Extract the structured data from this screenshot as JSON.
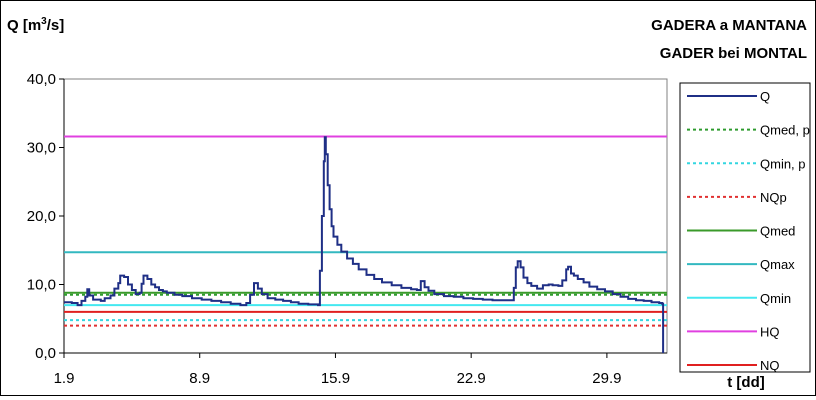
{
  "chart_data": {
    "type": "line",
    "title": "GADERA a MANTANA",
    "subtitle": "GADER bei MONTAL",
    "ylabel": "Q [m³/s]",
    "ylabel_main": "Q [m",
    "ylabel_sup": "3",
    "ylabel_tail": "/s]",
    "xlabel": "t [dd]",
    "ylim": [
      0,
      40
    ],
    "xlim": [
      1.9,
      33.0
    ],
    "grid": "none",
    "legend_position": "right",
    "y_ticks": [
      {
        "value": 0,
        "label": "0,0"
      },
      {
        "value": 10,
        "label": "10,0"
      },
      {
        "value": 20,
        "label": "20,0"
      },
      {
        "value": 30,
        "label": "30,0"
      },
      {
        "value": 40,
        "label": "40,0"
      }
    ],
    "x_ticks": [
      {
        "value": 1.9,
        "label": "1.9"
      },
      {
        "value": 8.9,
        "label": "8.9"
      },
      {
        "value": 15.9,
        "label": "15.9"
      },
      {
        "value": 22.9,
        "label": "22.9"
      },
      {
        "value": 29.9,
        "label": "29.9"
      }
    ],
    "series": [
      {
        "name": "Q",
        "color": "#1f2f86",
        "style": "solid",
        "width": 2,
        "points": [
          [
            1.9,
            7.4
          ],
          [
            2.3,
            7.3
          ],
          [
            2.6,
            7.0
          ],
          [
            2.8,
            7.6
          ],
          [
            3.0,
            8.2
          ],
          [
            3.1,
            9.3
          ],
          [
            3.2,
            8.4
          ],
          [
            3.4,
            7.8
          ],
          [
            3.8,
            7.6
          ],
          [
            4.0,
            8.0
          ],
          [
            4.3,
            8.4
          ],
          [
            4.5,
            9.4
          ],
          [
            4.7,
            10.2
          ],
          [
            4.8,
            11.3
          ],
          [
            5.0,
            11.1
          ],
          [
            5.2,
            10.0
          ],
          [
            5.4,
            9.2
          ],
          [
            5.6,
            8.6
          ],
          [
            5.8,
            8.8
          ],
          [
            5.9,
            10.1
          ],
          [
            6.0,
            11.3
          ],
          [
            6.2,
            10.8
          ],
          [
            6.4,
            10.0
          ],
          [
            6.6,
            9.6
          ],
          [
            6.8,
            9.2
          ],
          [
            7.0,
            9.0
          ],
          [
            7.2,
            8.8
          ],
          [
            7.6,
            8.5
          ],
          [
            8.0,
            8.3
          ],
          [
            8.5,
            8.0
          ],
          [
            9.0,
            7.8
          ],
          [
            9.5,
            7.6
          ],
          [
            10.0,
            7.4
          ],
          [
            10.5,
            7.2
          ],
          [
            11.0,
            7.0
          ],
          [
            11.3,
            7.3
          ],
          [
            11.5,
            8.5
          ],
          [
            11.7,
            10.2
          ],
          [
            11.9,
            9.4
          ],
          [
            12.1,
            8.6
          ],
          [
            12.4,
            8.0
          ],
          [
            12.8,
            7.8
          ],
          [
            13.2,
            7.6
          ],
          [
            13.6,
            7.4
          ],
          [
            14.0,
            7.2
          ],
          [
            14.5,
            7.1
          ],
          [
            15.0,
            7.0
          ],
          [
            15.1,
            12.0
          ],
          [
            15.2,
            20.0
          ],
          [
            15.3,
            28.0
          ],
          [
            15.35,
            31.5
          ],
          [
            15.4,
            29.0
          ],
          [
            15.5,
            24.5
          ],
          [
            15.6,
            21.0
          ],
          [
            15.7,
            18.5
          ],
          [
            15.8,
            17.0
          ],
          [
            16.0,
            15.8
          ],
          [
            16.2,
            14.8
          ],
          [
            16.5,
            13.8
          ],
          [
            16.8,
            13.0
          ],
          [
            17.1,
            12.2
          ],
          [
            17.5,
            11.4
          ],
          [
            17.9,
            10.8
          ],
          [
            18.3,
            10.3
          ],
          [
            18.8,
            9.9
          ],
          [
            19.3,
            9.5
          ],
          [
            19.8,
            9.3
          ],
          [
            20.1,
            9.2
          ],
          [
            20.3,
            10.5
          ],
          [
            20.5,
            9.6
          ],
          [
            20.7,
            9.1
          ],
          [
            21.0,
            8.6
          ],
          [
            21.5,
            8.3
          ],
          [
            22.0,
            8.2
          ],
          [
            22.5,
            8.0
          ],
          [
            23.0,
            7.9
          ],
          [
            23.5,
            7.8
          ],
          [
            24.0,
            7.7
          ],
          [
            24.5,
            7.7
          ],
          [
            25.0,
            7.7
          ],
          [
            25.1,
            9.5
          ],
          [
            25.2,
            12.5
          ],
          [
            25.3,
            13.4
          ],
          [
            25.45,
            12.5
          ],
          [
            25.6,
            11.0
          ],
          [
            25.8,
            10.2
          ],
          [
            26.0,
            9.8
          ],
          [
            26.3,
            9.4
          ],
          [
            26.6,
            9.9
          ],
          [
            26.9,
            10.0
          ],
          [
            27.1,
            9.9
          ],
          [
            27.4,
            9.8
          ],
          [
            27.6,
            10.6
          ],
          [
            27.8,
            12.2
          ],
          [
            27.9,
            12.6
          ],
          [
            28.05,
            11.6
          ],
          [
            28.2,
            11.3
          ],
          [
            28.4,
            10.8
          ],
          [
            28.7,
            10.3
          ],
          [
            29.0,
            9.7
          ],
          [
            29.4,
            9.3
          ],
          [
            29.8,
            9.0
          ],
          [
            30.2,
            8.6
          ],
          [
            30.6,
            8.2
          ],
          [
            31.0,
            7.9
          ],
          [
            31.4,
            7.7
          ],
          [
            31.8,
            7.6
          ],
          [
            32.2,
            7.4
          ],
          [
            32.6,
            7.3
          ],
          [
            32.75,
            7.2
          ],
          [
            32.8,
            0.0
          ]
        ]
      },
      {
        "name": "Qmed, p",
        "color": "#2e9b2e",
        "style": "dashed",
        "width": 2,
        "points": [
          [
            1.9,
            8.5
          ],
          [
            33.0,
            8.5
          ]
        ]
      },
      {
        "name": "Qmin, p",
        "color": "#33d6e0",
        "style": "dashed",
        "width": 2,
        "points": [
          [
            1.9,
            4.8
          ],
          [
            33.0,
            4.8
          ]
        ]
      },
      {
        "name": "NQp",
        "color": "#e03030",
        "style": "dashed",
        "width": 2,
        "points": [
          [
            1.9,
            4.0
          ],
          [
            33.0,
            4.0
          ]
        ]
      },
      {
        "name": "Qmed",
        "color": "#3a9a2a",
        "style": "solid",
        "width": 2,
        "points": [
          [
            1.9,
            8.8
          ],
          [
            33.0,
            8.8
          ]
        ]
      },
      {
        "name": "Qmax",
        "color": "#33b8c0",
        "style": "solid",
        "width": 2,
        "points": [
          [
            1.9,
            14.7
          ],
          [
            33.0,
            14.7
          ]
        ]
      },
      {
        "name": "Qmin",
        "color": "#44e8f0",
        "style": "solid",
        "width": 2,
        "points": [
          [
            1.9,
            7.0
          ],
          [
            33.0,
            7.0
          ]
        ]
      },
      {
        "name": "HQ",
        "color": "#e040e0",
        "style": "solid",
        "width": 2,
        "points": [
          [
            1.9,
            31.6
          ],
          [
            33.0,
            31.6
          ]
        ]
      },
      {
        "name": "NQ",
        "color": "#e02020",
        "style": "solid",
        "width": 2,
        "points": [
          [
            1.9,
            6.0
          ],
          [
            33.0,
            6.0
          ]
        ]
      }
    ]
  }
}
